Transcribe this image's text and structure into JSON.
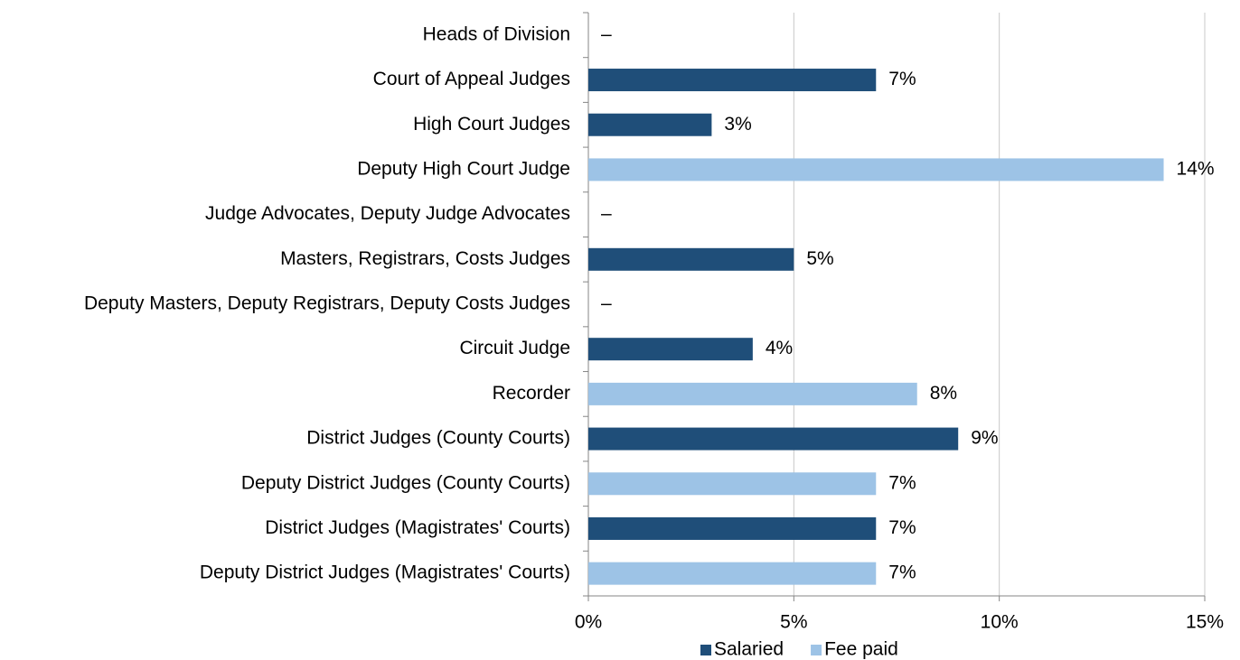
{
  "chart_data": {
    "type": "hbar",
    "categories": [
      "Heads of Division",
      "Court of Appeal Judges",
      "High Court Judges",
      "Deputy High Court Judge",
      "Judge Advocates, Deputy Judge Advocates",
      "Masters, Registrars, Costs Judges",
      "Deputy Masters, Deputy Registrars, Deputy Costs Judges",
      "Circuit Judge",
      "Recorder",
      "District Judges (County Courts)",
      "Deputy District Judges (County Courts)",
      "District Judges (Magistrates' Courts)",
      "Deputy District Judges (Magistrates' Courts)"
    ],
    "series": [
      {
        "name": "Salaried",
        "color": "#1f4e79",
        "values": [
          null,
          7,
          3,
          null,
          null,
          5,
          null,
          4,
          null,
          9,
          null,
          7,
          null
        ],
        "value_labels": [
          "–",
          "7%",
          "3%",
          null,
          "–",
          "5%",
          null,
          "4%",
          null,
          "9%",
          null,
          "7%",
          null
        ]
      },
      {
        "name": "Fee paid",
        "color": "#9dc3e6",
        "values": [
          null,
          null,
          null,
          14,
          null,
          null,
          null,
          null,
          8,
          null,
          7,
          null,
          7
        ],
        "value_labels": [
          null,
          null,
          null,
          "14%",
          null,
          null,
          "–",
          null,
          "8%",
          null,
          "7%",
          null,
          "7%"
        ]
      }
    ],
    "xlim": [
      0,
      15
    ],
    "xticks": [
      {
        "value": 0,
        "label": "0%"
      },
      {
        "value": 5,
        "label": "5%"
      },
      {
        "value": 10,
        "label": "10%"
      },
      {
        "value": 15,
        "label": "15%"
      }
    ],
    "grid": true,
    "legend": "bottom"
  }
}
